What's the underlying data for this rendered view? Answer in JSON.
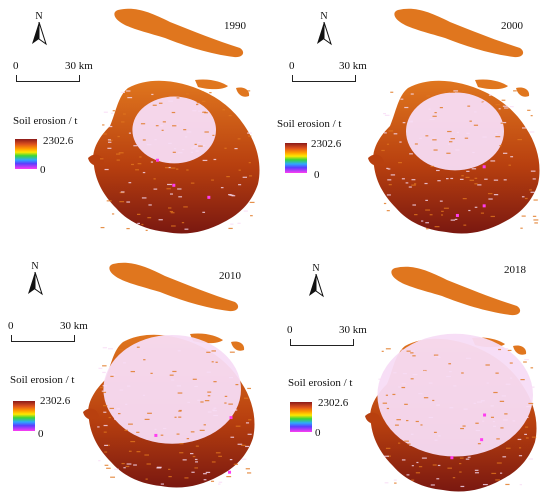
{
  "scale": {
    "zero_label": "0",
    "distance_label": "30 km"
  },
  "north_label": "N",
  "legend": {
    "title": "Soil erosion / t",
    "max": "2302.6",
    "min": "0"
  },
  "colors": {
    "eroded_high": "#7a1810",
    "eroded_mid": "#b8400f",
    "eroded_low": "#e0761e",
    "urban": "#f7dcf5",
    "hotspot": "#ff3cf0"
  },
  "panels": [
    {
      "year": "1990",
      "urban_extent": 0.22
    },
    {
      "year": "2000",
      "urban_extent": 0.3
    },
    {
      "year": "2010",
      "urban_extent": 0.52
    },
    {
      "year": "2018",
      "urban_extent": 0.62
    }
  ]
}
